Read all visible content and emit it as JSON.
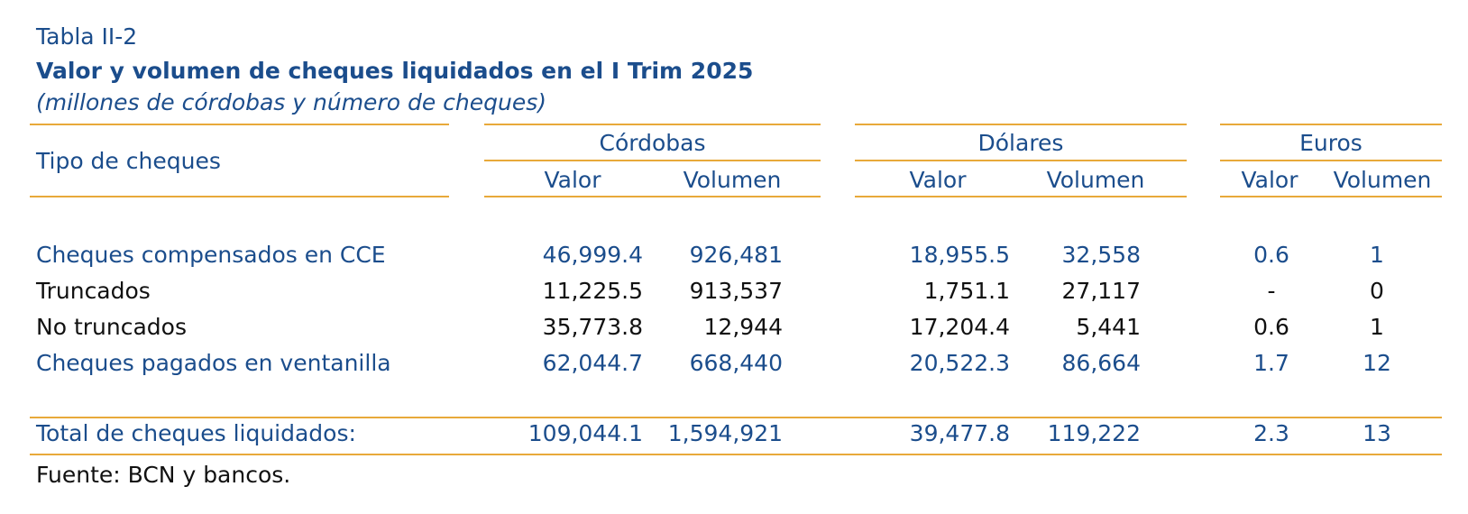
{
  "caption": "Tabla II-2",
  "title": "Valor y volumen de cheques liquidados en el I Trim 2025",
  "subtitle": "(millones de córdobas y número de cheques)",
  "colors": {
    "accent_rule": "#e8a93a",
    "text_blue": "#1b4d8c",
    "text_black": "#111111"
  },
  "header": {
    "row_label": "Tipo de cheques",
    "groups": [
      "Córdobas",
      "Dólares",
      "Euros"
    ],
    "sub": [
      "Valor",
      "Volumen"
    ]
  },
  "rows": [
    {
      "label": "Cheques compensados en CCE",
      "cells": [
        "46,999.4",
        "926,481",
        "18,955.5",
        "32,558",
        "0.6",
        "1"
      ]
    },
    {
      "label": "Truncados",
      "cells": [
        "11,225.5",
        "913,537",
        "1,751.1",
        "27,117",
        "-",
        "0"
      ]
    },
    {
      "label": "No truncados",
      "cells": [
        "35,773.8",
        "12,944",
        "17,204.4",
        "5,441",
        "0.6",
        "1"
      ]
    },
    {
      "label": "Cheques pagados en ventanilla",
      "cells": [
        "62,044.7",
        "668,440",
        "20,522.3",
        "86,664",
        "1.7",
        "12"
      ]
    }
  ],
  "total": {
    "label": "Total de cheques liquidados:",
    "cells": [
      "109,044.1",
      "1,594,921",
      "39,477.8",
      "119,222",
      "2.3",
      "13"
    ]
  },
  "source": "Fuente: BCN y bancos."
}
